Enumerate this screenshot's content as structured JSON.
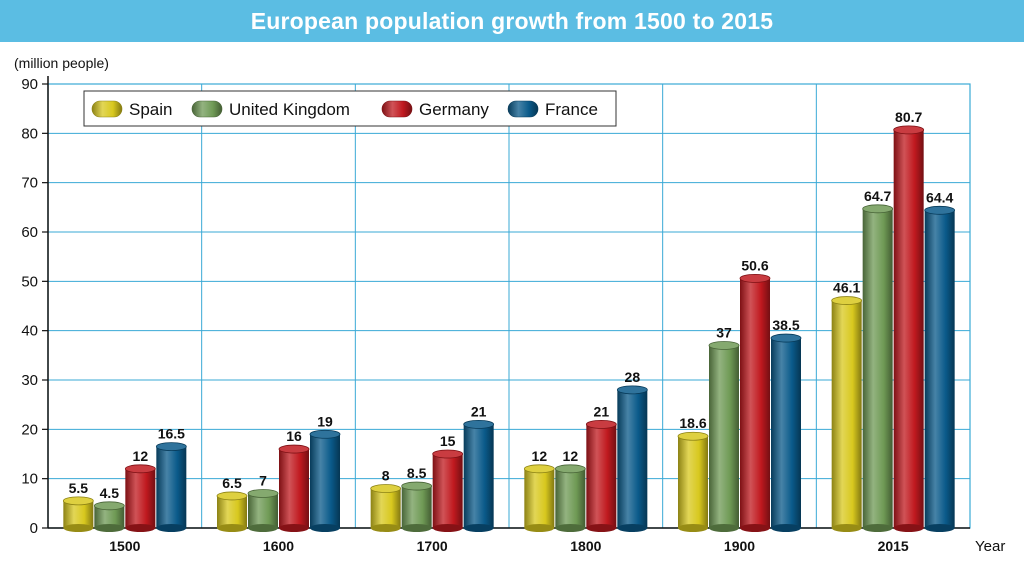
{
  "header": {
    "title": "European population growth from 1500 to 2015"
  },
  "chart_data": {
    "type": "bar",
    "title": "European population growth from 1500 to 2015",
    "ylabel": "(million people)",
    "xlabel": "Year",
    "ylim": [
      0,
      90
    ],
    "yticks": [
      0,
      10,
      20,
      30,
      40,
      50,
      60,
      70,
      80,
      90
    ],
    "grid": true,
    "legend_position": "top-left",
    "categories": [
      "1500",
      "1600",
      "1700",
      "1800",
      "1900",
      "2015"
    ],
    "series": [
      {
        "name": "Spain",
        "color": "#d8c81e",
        "values": [
          5.5,
          6.5,
          8,
          12,
          18.6,
          46.1
        ]
      },
      {
        "name": "United Kingdom",
        "color": "#6f9a55",
        "values": [
          4.5,
          7,
          8.5,
          12,
          37,
          64.7
        ]
      },
      {
        "name": "Germany",
        "color": "#c0191f",
        "values": [
          12,
          16,
          15,
          21,
          50.6,
          80.7
        ]
      },
      {
        "name": "France",
        "color": "#0a5a8a",
        "values": [
          16.5,
          19,
          21,
          28,
          38.5,
          64.4
        ]
      }
    ],
    "data_labels": [
      [
        "5.5",
        "6.5",
        "8",
        "12",
        "18.6",
        "46.1"
      ],
      [
        "4.5",
        "7",
        "8.5",
        "12",
        "37",
        "64.7"
      ],
      [
        "12",
        "16",
        "15",
        "21",
        "50.6",
        "80.7"
      ],
      [
        "16.5",
        "19",
        "21",
        "28",
        "38.5",
        "64.4"
      ]
    ]
  }
}
